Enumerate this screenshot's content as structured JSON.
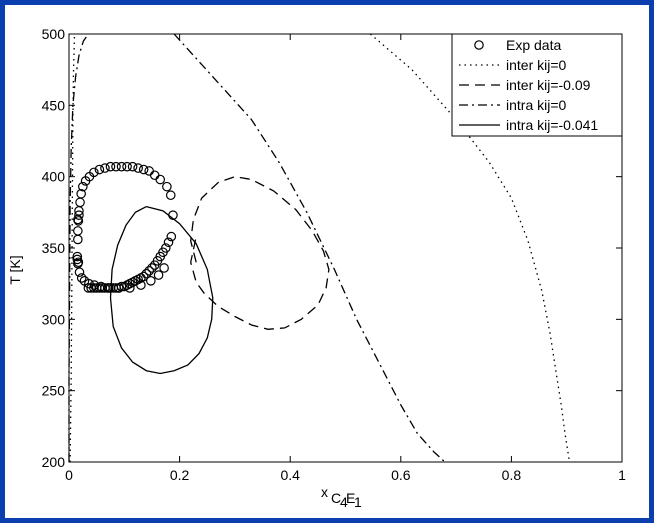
{
  "chart_data": {
    "type": "line",
    "xlabel": "x",
    "xlabel_sub": "C",
    "xlabel_sub_4": "4",
    "xlabel_sub_E": "E",
    "xlabel_sub_1": "1",
    "ylabel": "T [K]",
    "xlim": [
      0,
      1
    ],
    "ylim": [
      200,
      500
    ],
    "x_ticks": [
      0,
      0.2,
      0.4,
      0.6,
      0.8,
      1
    ],
    "x_tick_labels": [
      "0",
      "0.2",
      "0.4",
      "0.6",
      "0.8",
      "1"
    ],
    "y_ticks": [
      200,
      250,
      300,
      350,
      400,
      450,
      500
    ],
    "y_tick_labels": [
      "200",
      "250",
      "300",
      "350",
      "400",
      "450",
      "500"
    ],
    "grid": false,
    "legend_position": "top-right",
    "series": [
      {
        "name": "Exp data",
        "style": "circle",
        "x": [
          0.035,
          0.04,
          0.045,
          0.05,
          0.055,
          0.06,
          0.065,
          0.07,
          0.075,
          0.08,
          0.085,
          0.09,
          0.095,
          0.1,
          0.105,
          0.11,
          0.115,
          0.12,
          0.125,
          0.13,
          0.135,
          0.14,
          0.145,
          0.15,
          0.155,
          0.16,
          0.165,
          0.17,
          0.175,
          0.18,
          0.185,
          0.188,
          0.184,
          0.177,
          0.165,
          0.155,
          0.145,
          0.135,
          0.125,
          0.115,
          0.105,
          0.095,
          0.085,
          0.075,
          0.065,
          0.055,
          0.045,
          0.037,
          0.03,
          0.025,
          0.022,
          0.02,
          0.018,
          0.017,
          0.016,
          0.016,
          0.017,
          0.019,
          0.023,
          0.028,
          0.036,
          0.046,
          0.058,
          0.072,
          0.09,
          0.11,
          0.13,
          0.148,
          0.162,
          0.172,
          0.018,
          0.016,
          0.015,
          0.015,
          0.016
        ],
        "y": [
          322,
          322,
          322,
          322,
          322,
          322,
          322,
          322,
          322,
          322,
          322,
          322,
          323,
          323,
          324,
          325,
          326,
          327,
          328,
          329,
          330,
          332,
          334,
          336,
          338,
          341,
          344,
          347,
          350,
          354,
          358,
          373,
          387,
          393,
          398,
          401,
          404,
          405,
          406,
          407,
          407,
          407,
          407,
          407,
          406,
          405,
          403,
          400,
          397,
          393,
          388,
          382,
          376,
          369,
          362,
          356,
          340,
          333,
          329,
          327,
          325,
          324,
          323,
          322,
          322,
          322,
          324,
          327,
          331,
          336,
          373,
          370,
          344,
          342,
          339
        ]
      },
      {
        "name": "inter kij=0",
        "style": "dotted",
        "x": [
          0.002,
          0.004,
          0.005,
          0.006,
          0.007,
          0.008,
          0.01
        ],
        "y": [
          200,
          260,
          320,
          380,
          440,
          470,
          500
        ],
        "x2": [
          0.545,
          0.62,
          0.7,
          0.76,
          0.8,
          0.83,
          0.855,
          0.87,
          0.88,
          0.89,
          0.897,
          0.905
        ],
        "y2": [
          500,
          475,
          440,
          410,
          385,
          355,
          320,
          290,
          265,
          240,
          220,
          200
        ]
      },
      {
        "name": "inter kij=-0.09",
        "style": "dashed",
        "x": [
          0.23,
          0.22,
          0.225,
          0.24,
          0.27,
          0.3,
          0.33,
          0.37,
          0.41,
          0.44,
          0.46,
          0.47,
          0.465,
          0.45,
          0.42,
          0.39,
          0.36,
          0.33,
          0.3,
          0.27,
          0.245,
          0.23,
          0.22,
          0.23
        ],
        "y": [
          340,
          355,
          370,
          385,
          396,
          400,
          398,
          390,
          377,
          362,
          348,
          335,
          322,
          310,
          300,
          294,
          293,
          296,
          302,
          309,
          318,
          326,
          340,
          358
        ]
      },
      {
        "name": "intra kij=0",
        "style": "dashdot",
        "x": [
          0.0,
          0.0,
          0.001,
          0.002,
          0.004,
          0.007,
          0.012,
          0.018,
          0.026,
          0.035
        ],
        "y": [
          200,
          260,
          320,
          380,
          420,
          450,
          470,
          485,
          495,
          500
        ],
        "x2": [
          0.19,
          0.26,
          0.33,
          0.38,
          0.43,
          0.48,
          0.52,
          0.56,
          0.6,
          0.63,
          0.66,
          0.68
        ],
        "y2": [
          500,
          470,
          440,
          410,
          375,
          335,
          300,
          270,
          240,
          220,
          207,
          200
        ]
      },
      {
        "name": "intra kij=-0.041",
        "style": "solid",
        "x": [
          0.14,
          0.17,
          0.2,
          0.23,
          0.25,
          0.26,
          0.258,
          0.25,
          0.235,
          0.215,
          0.19,
          0.165,
          0.14,
          0.115,
          0.095,
          0.08,
          0.075,
          0.078,
          0.088,
          0.103,
          0.12,
          0.14
        ],
        "y": [
          379,
          376,
          367,
          353,
          335,
          315,
          300,
          287,
          276,
          268,
          264,
          262,
          264,
          270,
          280,
          295,
          315,
          335,
          352,
          366,
          375,
          379
        ]
      }
    ]
  }
}
